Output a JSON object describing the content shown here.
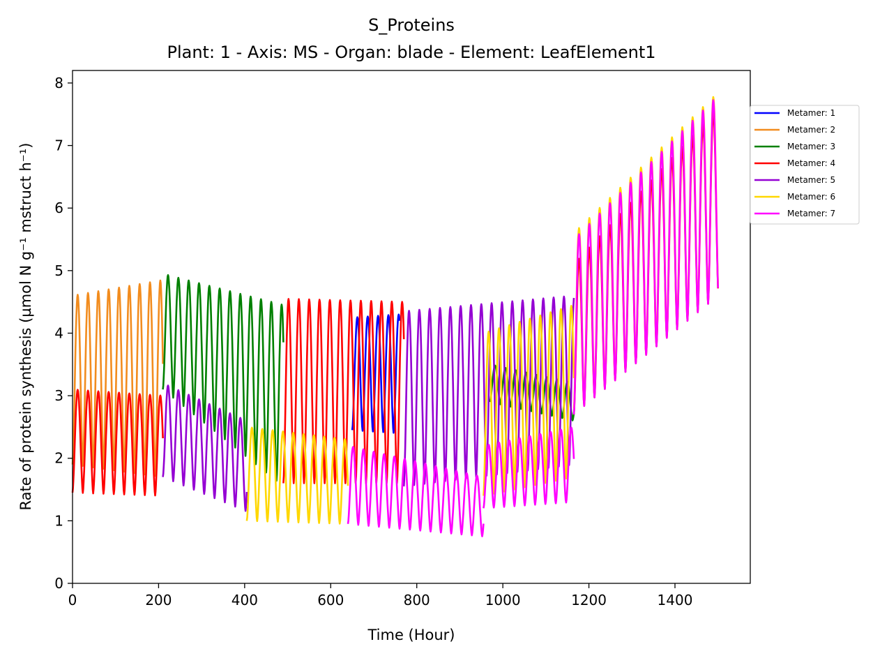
{
  "chart_data": {
    "type": "line",
    "title": "S_Proteins",
    "subtitle": "Plant: 1 - Axis: MS - Organ: blade - Element: LeafElement1",
    "xlabel": "Time (Hour)",
    "ylabel": "Rate of protein synthesis (µmol N g⁻¹ mstruct h⁻¹)",
    "xlim": [
      0,
      1575
    ],
    "ylim": [
      0,
      8.2
    ],
    "xticks": [
      0,
      200,
      400,
      600,
      800,
      1000,
      1200,
      1400
    ],
    "yticks": [
      0,
      1,
      2,
      3,
      4,
      5,
      6,
      7,
      8
    ],
    "grid": false,
    "legend_position": "right",
    "period_hours": 24,
    "series": [
      {
        "name": "Metamer: 1",
        "color": "#0000ff",
        "segments": [
          {
            "start": 650,
            "end": 760,
            "peak": [
              4.25,
              4.3
            ],
            "trough": [
              2.45,
              2.4
            ]
          }
        ]
      },
      {
        "name": "Metamer: 2",
        "color": "#f28c1e",
        "segments": [
          {
            "start": 0,
            "end": 210,
            "peak": [
              4.6,
              4.85
            ],
            "trough": [
              1.9,
              1.7
            ]
          }
        ]
      },
      {
        "name": "Metamer: 3",
        "color": "#008000",
        "segments": [
          {
            "start": 210,
            "end": 490,
            "peak": [
              4.95,
              4.45
            ],
            "trough": [
              3.1,
              1.55
            ]
          },
          {
            "start": 970,
            "end": 1165,
            "peak": [
              3.5,
              3.2
            ],
            "trough": [
              2.9,
              2.6
            ]
          }
        ]
      },
      {
        "name": "Metamer: 4",
        "color": "#ff0000",
        "segments": [
          {
            "start": 0,
            "end": 210,
            "peak": [
              3.1,
              3.0
            ],
            "trough": [
              1.45,
              1.4
            ]
          },
          {
            "start": 490,
            "end": 770,
            "peak": [
              4.55,
              4.5
            ],
            "trough": [
              1.6,
              1.6
            ]
          },
          {
            "start": 1165,
            "end": 1500,
            "peak": [
              5.1,
              7.6
            ],
            "trough": [
              2.7,
              4.6
            ]
          }
        ]
      },
      {
        "name": "Metamer: 5",
        "color": "#9400d3",
        "segments": [
          {
            "start": 210,
            "end": 405,
            "peak": [
              3.2,
              2.6
            ],
            "trough": [
              1.7,
              1.15
            ]
          },
          {
            "start": 770,
            "end": 1165,
            "peak": [
              4.35,
              4.6
            ],
            "trough": [
              1.55,
              1.9
            ]
          }
        ]
      },
      {
        "name": "Metamer: 6",
        "color": "#ffd700",
        "segments": [
          {
            "start": 405,
            "end": 640,
            "peak": [
              2.5,
              2.3
            ],
            "trough": [
              1.0,
              0.95
            ]
          },
          {
            "start": 955,
            "end": 1165,
            "peak": [
              4.0,
              4.45
            ],
            "trough": [
              1.4,
              1.7
            ]
          },
          {
            "start": 1165,
            "end": 1500,
            "peak": [
              5.6,
              7.85
            ],
            "trough": [
              2.8,
              4.65
            ]
          }
        ]
      },
      {
        "name": "Metamer: 7",
        "color": "#ff00ff",
        "segments": [
          {
            "start": 640,
            "end": 955,
            "peak": [
              2.2,
              1.7
            ],
            "trough": [
              0.95,
              0.75
            ]
          },
          {
            "start": 955,
            "end": 1165,
            "peak": [
              2.2,
              2.5
            ],
            "trough": [
              1.2,
              1.3
            ]
          },
          {
            "start": 1165,
            "end": 1500,
            "peak": [
              5.5,
              7.8
            ],
            "trough": [
              2.7,
              4.6
            ]
          }
        ]
      }
    ]
  }
}
